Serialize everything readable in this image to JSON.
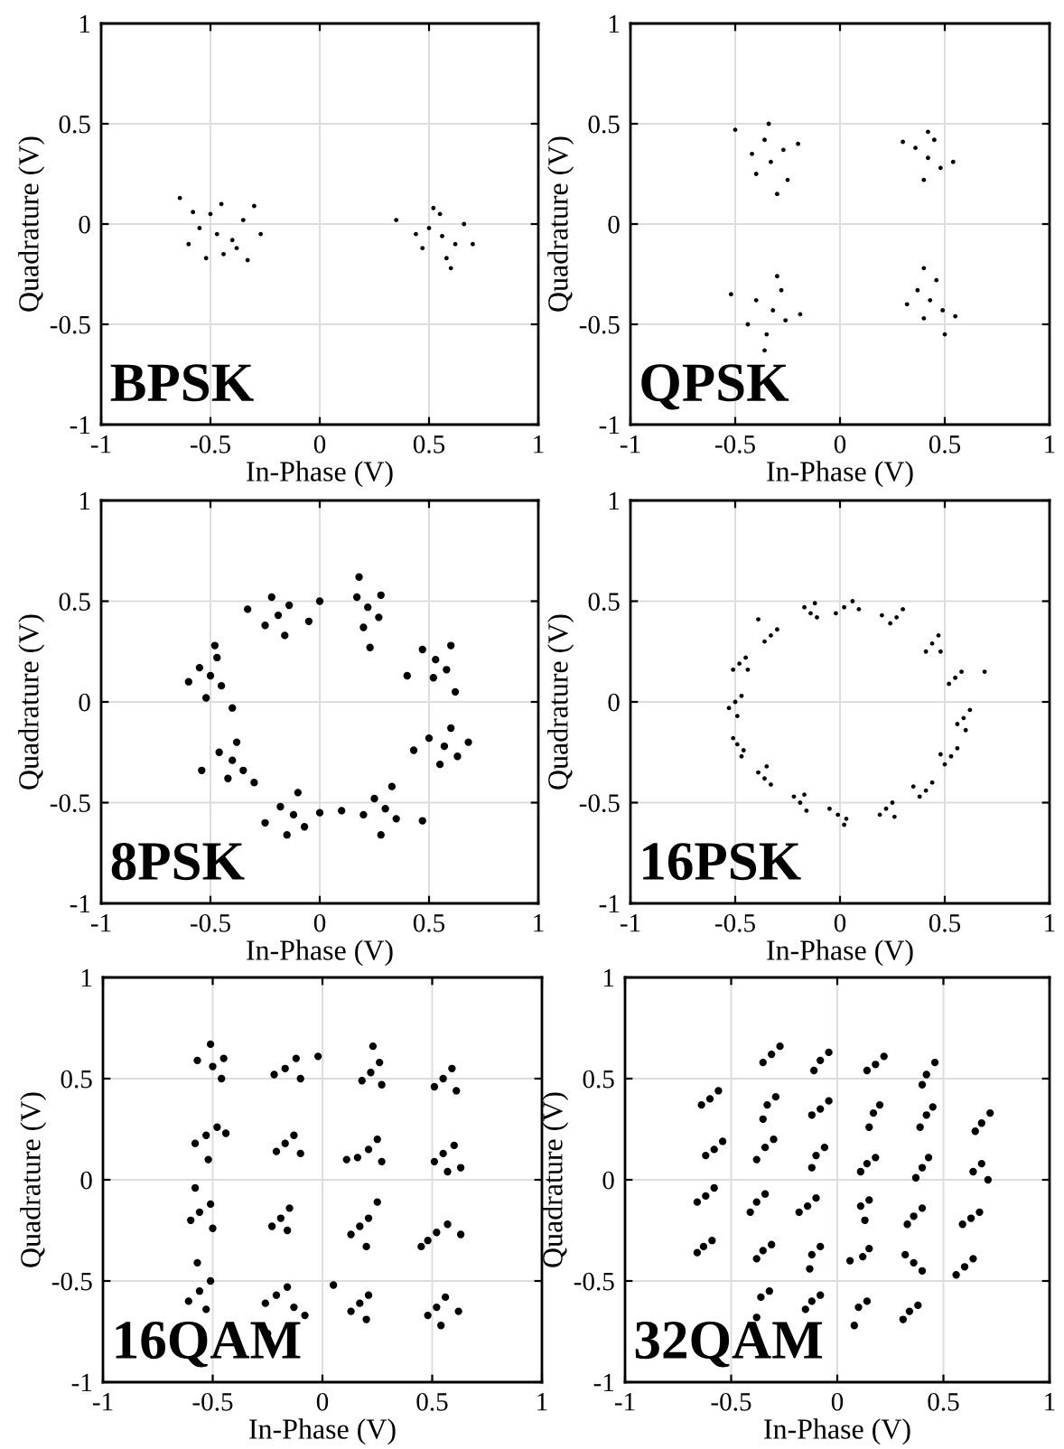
{
  "chart_data": [
    {
      "type": "scatter",
      "xlabel": "In-Phase (V)",
      "ylabel": "Quadrature (V)",
      "annotations": [
        "BPSK"
      ],
      "xlim": [
        -1,
        1
      ],
      "ylim": [
        -1,
        1
      ],
      "xticks": [
        -1,
        -0.5,
        0,
        0.5,
        1
      ],
      "yticks": [
        -1,
        -0.5,
        0,
        0.5,
        1
      ],
      "grid": true,
      "marker": "circle",
      "series": [
        {
          "color": "#000000",
          "x": [
            -0.47,
            -0.55,
            -0.4,
            -0.5,
            -0.44,
            -0.6,
            -0.35,
            -0.52,
            -0.38,
            -0.64,
            -0.3,
            -0.27,
            -0.58,
            -0.45,
            -0.33,
            0.56,
            0.5,
            0.62,
            0.55,
            0.58,
            0.47,
            0.66,
            0.6,
            0.7,
            0.35,
            0.52,
            0.44
          ],
          "values": [
            -0.05,
            -0.02,
            -0.08,
            0.05,
            -0.15,
            -0.1,
            0.02,
            -0.17,
            -0.12,
            0.13,
            0.09,
            -0.05,
            0.06,
            0.1,
            -0.18,
            -0.06,
            -0.02,
            -0.1,
            0.05,
            -0.17,
            -0.12,
            0.0,
            -0.22,
            -0.1,
            0.02,
            0.08,
            -0.05
          ]
        }
      ]
    },
    {
      "type": "scatter",
      "xlabel": "In-Phase (V)",
      "ylabel": "Quadrature (V)",
      "annotations": [
        "QPSK"
      ],
      "xlim": [
        -1,
        1
      ],
      "ylim": [
        -1,
        1
      ],
      "xticks": [
        -1,
        -0.5,
        0,
        0.5,
        1
      ],
      "yticks": [
        -1,
        -0.5,
        0,
        0.5,
        1
      ],
      "grid": true,
      "marker": "circle",
      "series": [
        {
          "color": "#000000",
          "x": [
            -0.33,
            -0.4,
            -0.27,
            -0.36,
            -0.25,
            -0.42,
            -0.3,
            -0.34,
            -0.5,
            -0.2,
            0.42,
            0.36,
            0.48,
            0.4,
            0.45,
            0.3,
            0.54,
            0.42,
            -0.32,
            -0.4,
            -0.26,
            -0.35,
            -0.28,
            -0.44,
            -0.19,
            -0.36,
            -0.52,
            -0.3,
            0.43,
            0.37,
            0.49,
            0.4,
            0.46,
            0.32,
            0.55,
            0.4,
            0.5
          ],
          "values": [
            0.31,
            0.25,
            0.37,
            0.42,
            0.22,
            0.35,
            0.15,
            0.5,
            0.47,
            0.4,
            0.33,
            0.38,
            0.28,
            0.22,
            0.42,
            0.41,
            0.31,
            0.46,
            -0.43,
            -0.38,
            -0.48,
            -0.55,
            -0.33,
            -0.5,
            -0.45,
            -0.63,
            -0.35,
            -0.26,
            -0.38,
            -0.33,
            -0.43,
            -0.47,
            -0.28,
            -0.4,
            -0.46,
            -0.22,
            -0.55
          ]
        }
      ]
    },
    {
      "type": "scatter",
      "xlabel": "In-Phase (V)",
      "ylabel": "Quadrature (V)",
      "annotations": [
        "8PSK"
      ],
      "xlim": [
        -1,
        1
      ],
      "ylim": [
        -1,
        1
      ],
      "xticks": [
        -1,
        -0.5,
        0,
        0.5,
        1
      ],
      "yticks": [
        -1,
        -0.5,
        0,
        0.5,
        1
      ],
      "grid": true,
      "marker": "circle",
      "series": [
        {
          "color": "#000000",
          "x": [
            0.22,
            0.17,
            0.27,
            0.2,
            0.28,
            0.18,
            0.23,
            0.53,
            0.47,
            0.58,
            0.52,
            0.6,
            0.4,
            0.62,
            0.57,
            0.5,
            0.63,
            0.55,
            0.6,
            0.43,
            0.68,
            0.3,
            0.25,
            0.35,
            0.28,
            0.33,
            0.2,
            0.47,
            -0.12,
            -0.18,
            -0.07,
            -0.15,
            -0.1,
            -0.25,
            0.0,
            0.1,
            -0.4,
            -0.46,
            -0.35,
            -0.42,
            -0.38,
            -0.54,
            -0.3,
            -0.5,
            -0.55,
            -0.45,
            -0.52,
            -0.47,
            -0.6,
            -0.4,
            -0.48,
            -0.19,
            -0.25,
            -0.14,
            -0.22,
            -0.16,
            -0.33,
            -0.05,
            0.0
          ],
          "values": [
            0.47,
            0.52,
            0.42,
            0.37,
            0.53,
            0.62,
            0.27,
            0.21,
            0.26,
            0.16,
            0.12,
            0.28,
            0.13,
            0.05,
            -0.22,
            -0.18,
            -0.27,
            -0.31,
            -0.13,
            -0.24,
            -0.2,
            -0.53,
            -0.48,
            -0.58,
            -0.66,
            -0.42,
            -0.56,
            -0.59,
            -0.56,
            -0.52,
            -0.62,
            -0.66,
            -0.45,
            -0.6,
            -0.55,
            -0.54,
            -0.29,
            -0.25,
            -0.34,
            -0.38,
            -0.2,
            -0.34,
            -0.4,
            0.13,
            0.17,
            0.08,
            0.02,
            0.22,
            0.1,
            -0.03,
            0.28,
            0.43,
            0.38,
            0.48,
            0.52,
            0.33,
            0.46,
            0.4,
            0.5
          ]
        }
      ]
    },
    {
      "type": "scatter",
      "xlabel": "In-Phase (V)",
      "ylabel": "Quadrature (V)",
      "annotations": [
        "16PSK"
      ],
      "xlim": [
        -1,
        1
      ],
      "ylim": [
        -1,
        1
      ],
      "xticks": [
        -1,
        -0.5,
        0,
        0.5,
        1
      ],
      "yticks": [
        -1,
        -0.5,
        0,
        0.5,
        1
      ],
      "grid": true,
      "marker": "circle",
      "series": [
        {
          "color": "#000000",
          "x": [
            0.02,
            0.06,
            -0.02,
            0.09,
            0.27,
            0.3,
            0.24,
            0.2,
            0.44,
            0.47,
            0.41,
            0.48,
            0.55,
            0.58,
            0.52,
            0.69,
            0.59,
            0.62,
            0.56,
            0.6,
            0.53,
            0.56,
            0.5,
            0.48,
            0.41,
            0.44,
            0.38,
            0.35,
            0.22,
            0.25,
            0.19,
            0.26,
            -0.01,
            0.03,
            -0.05,
            0.02,
            -0.19,
            -0.16,
            -0.22,
            -0.17,
            -0.36,
            -0.33,
            -0.39,
            -0.35,
            -0.49,
            -0.46,
            -0.51,
            -0.47,
            -0.5,
            -0.47,
            -0.53,
            -0.49,
            -0.48,
            -0.45,
            -0.51,
            -0.44,
            -0.33,
            -0.3,
            -0.36,
            -0.39,
            -0.14,
            -0.11,
            -0.17,
            -0.12
          ],
          "values": [
            0.47,
            0.5,
            0.44,
            0.46,
            0.42,
            0.46,
            0.39,
            0.43,
            0.29,
            0.33,
            0.25,
            0.25,
            0.12,
            0.15,
            0.09,
            0.15,
            -0.08,
            -0.04,
            -0.11,
            -0.14,
            -0.27,
            -0.23,
            -0.31,
            -0.26,
            -0.44,
            -0.4,
            -0.47,
            -0.42,
            -0.53,
            -0.5,
            -0.56,
            -0.57,
            -0.56,
            -0.58,
            -0.53,
            -0.61,
            -0.5,
            -0.54,
            -0.47,
            -0.46,
            -0.38,
            -0.41,
            -0.35,
            -0.32,
            -0.21,
            -0.24,
            -0.18,
            -0.27,
            0.0,
            0.03,
            -0.03,
            -0.07,
            0.19,
            0.22,
            0.16,
            0.16,
            0.33,
            0.36,
            0.3,
            0.41,
            0.44,
            0.42,
            0.47,
            0.49
          ]
        }
      ]
    },
    {
      "type": "scatter",
      "xlabel": "In-Phase (V)",
      "ylabel": "Quadrature (V)",
      "annotations": [
        "16QAM"
      ],
      "xlim": [
        -1,
        1
      ],
      "ylim": [
        -1,
        1
      ],
      "xticks": [
        -1,
        -0.5,
        0,
        0.5,
        1
      ],
      "yticks": [
        -1,
        -0.5,
        0,
        0.5,
        1
      ],
      "grid": true,
      "marker": "circle",
      "series": [
        {
          "color": "#000000",
          "x": [
            -0.5,
            -0.45,
            -0.57,
            -0.46,
            -0.51,
            -0.17,
            -0.12,
            -0.22,
            -0.1,
            -0.02,
            0.22,
            0.26,
            0.18,
            0.27,
            0.23,
            0.55,
            0.59,
            0.51,
            0.61,
            -0.53,
            -0.48,
            -0.58,
            -0.52,
            -0.44,
            -0.17,
            -0.13,
            -0.21,
            -0.1,
            0.21,
            0.25,
            0.16,
            0.27,
            0.11,
            0.55,
            0.6,
            0.51,
            0.63,
            0.57,
            -0.56,
            -0.51,
            -0.6,
            -0.58,
            -0.5,
            -0.19,
            -0.15,
            -0.23,
            -0.16,
            0.17,
            0.21,
            0.13,
            0.2,
            0.25,
            0.52,
            0.57,
            0.48,
            0.63,
            0.45,
            -0.56,
            -0.51,
            -0.61,
            -0.53,
            -0.57,
            -0.21,
            -0.16,
            -0.26,
            -0.13,
            -0.25,
            -0.08,
            0.17,
            0.21,
            0.13,
            0.2,
            0.05,
            0.52,
            0.56,
            0.48,
            0.54,
            0.62
          ],
          "values": [
            0.56,
            0.6,
            0.59,
            0.5,
            0.67,
            0.55,
            0.6,
            0.52,
            0.5,
            0.61,
            0.53,
            0.58,
            0.49,
            0.47,
            0.66,
            0.5,
            0.55,
            0.46,
            0.44,
            0.22,
            0.26,
            0.18,
            0.1,
            0.23,
            0.18,
            0.22,
            0.14,
            0.13,
            0.15,
            0.2,
            0.11,
            0.09,
            0.1,
            0.13,
            0.17,
            0.09,
            0.06,
            0.04,
            -0.16,
            -0.12,
            -0.2,
            -0.04,
            -0.24,
            -0.19,
            -0.14,
            -0.23,
            -0.25,
            -0.23,
            -0.19,
            -0.27,
            -0.33,
            -0.11,
            -0.26,
            -0.22,
            -0.3,
            -0.27,
            -0.33,
            -0.55,
            -0.5,
            -0.6,
            -0.64,
            -0.41,
            -0.57,
            -0.53,
            -0.61,
            -0.63,
            -0.76,
            -0.67,
            -0.61,
            -0.57,
            -0.65,
            -0.69,
            -0.52,
            -0.63,
            -0.58,
            -0.67,
            -0.72,
            -0.65
          ]
        }
      ]
    },
    {
      "type": "scatter",
      "xlabel": "In-Phase (V)",
      "ylabel": "Quadrature (V)",
      "annotations": [
        "32QAM"
      ],
      "xlim": [
        -1,
        1
      ],
      "ylim": [
        -1,
        1
      ],
      "xticks": [
        -1,
        -0.5,
        0,
        0.5,
        1
      ],
      "yticks": [
        -1,
        -0.5,
        0,
        0.5,
        1
      ],
      "grid": true,
      "marker": "circle",
      "series": [
        {
          "color": "#000000",
          "x": [
            -0.31,
            -0.27,
            -0.35,
            -0.08,
            -0.04,
            -0.11,
            0.18,
            0.22,
            0.14,
            0.42,
            0.46,
            0.4,
            -0.6,
            -0.56,
            -0.64,
            -0.33,
            -0.29,
            -0.35,
            -0.08,
            -0.04,
            -0.12,
            0.17,
            0.2,
            0.15,
            0.42,
            0.45,
            0.39,
            0.68,
            0.72,
            0.65,
            -0.58,
            -0.54,
            -0.62,
            -0.34,
            -0.3,
            -0.38,
            -0.1,
            -0.06,
            -0.12,
            0.14,
            0.18,
            0.11,
            0.4,
            0.43,
            0.37,
            0.64,
            0.68,
            0.71,
            -0.62,
            -0.58,
            -0.66,
            -0.38,
            -0.34,
            -0.41,
            -0.14,
            -0.1,
            -0.18,
            0.11,
            0.15,
            0.13,
            0.36,
            0.4,
            0.33,
            0.63,
            0.67,
            0.59,
            -0.63,
            -0.59,
            -0.66,
            -0.35,
            -0.31,
            -0.38,
            -0.12,
            -0.08,
            -0.13,
            0.12,
            0.15,
            0.06,
            0.36,
            0.4,
            0.32,
            0.6,
            0.64,
            0.56,
            -0.36,
            -0.32,
            -0.38,
            -0.12,
            -0.08,
            -0.15,
            0.1,
            0.14,
            0.08,
            0.34,
            0.38,
            0.31
          ],
          "values": [
            0.62,
            0.66,
            0.58,
            0.59,
            0.63,
            0.54,
            0.57,
            0.61,
            0.54,
            0.52,
            0.58,
            0.47,
            0.4,
            0.44,
            0.37,
            0.37,
            0.41,
            0.3,
            0.35,
            0.39,
            0.32,
            0.33,
            0.37,
            0.26,
            0.32,
            0.36,
            0.26,
            0.28,
            0.33,
            0.24,
            0.15,
            0.19,
            0.12,
            0.16,
            0.2,
            0.1,
            0.12,
            0.16,
            0.06,
            0.08,
            0.11,
            0.04,
            0.06,
            0.11,
            0.01,
            0.04,
            0.08,
            0.0,
            -0.08,
            -0.04,
            -0.11,
            -0.11,
            -0.07,
            -0.16,
            -0.13,
            -0.09,
            -0.16,
            -0.13,
            -0.1,
            -0.2,
            -0.18,
            -0.14,
            -0.22,
            -0.19,
            -0.16,
            -0.22,
            -0.33,
            -0.3,
            -0.36,
            -0.35,
            -0.32,
            -0.39,
            -0.37,
            -0.33,
            -0.44,
            -0.38,
            -0.34,
            -0.4,
            -0.41,
            -0.45,
            -0.37,
            -0.43,
            -0.39,
            -0.47,
            -0.58,
            -0.55,
            -0.68,
            -0.6,
            -0.57,
            -0.64,
            -0.63,
            -0.6,
            -0.72,
            -0.65,
            -0.62,
            -0.69
          ]
        }
      ]
    }
  ]
}
